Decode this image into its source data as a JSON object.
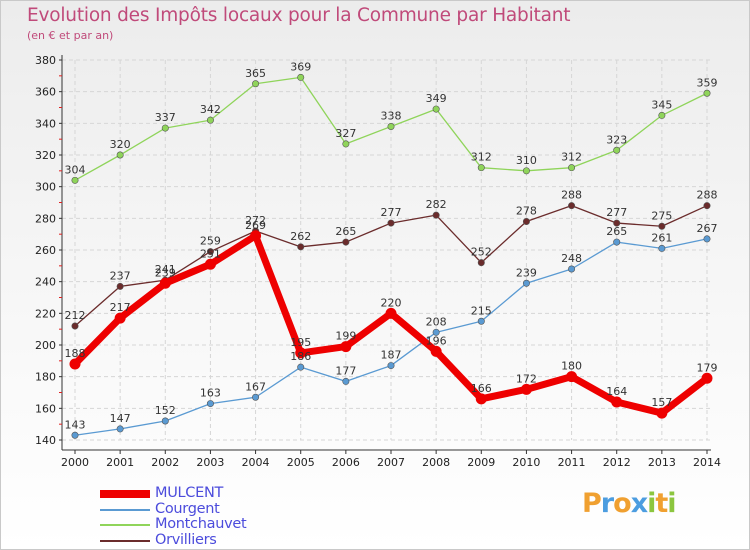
{
  "title": "Evolution des Impôts locaux pour la Commune par Habitant",
  "subtitle": "(en € et par an)",
  "logo": {
    "text": "Proxiti",
    "letters": [
      {
        "ch": "P",
        "color": "#f0a030"
      },
      {
        "ch": "r",
        "color": "#4c9de0"
      },
      {
        "ch": "o",
        "color": "#f0a030"
      },
      {
        "ch": "x",
        "color": "#4c9de0"
      },
      {
        "ch": "i",
        "color": "#8cc63f"
      },
      {
        "ch": "t",
        "color": "#f0a030"
      },
      {
        "ch": "i",
        "color": "#8cc63f"
      }
    ]
  },
  "chart_data": {
    "type": "line",
    "x": [
      "2000",
      "2001",
      "2002",
      "2003",
      "2004",
      "2005",
      "2006",
      "2007",
      "2008",
      "2009",
      "2010",
      "2011",
      "2012",
      "2013",
      "2014"
    ],
    "ylim": [
      140,
      380
    ],
    "yticks": [
      140,
      160,
      180,
      200,
      220,
      240,
      260,
      280,
      300,
      320,
      340,
      360,
      380
    ],
    "grid": true,
    "legend_position": "bottom-left",
    "series": [
      {
        "name": "MULCENT",
        "color": "#ee0000",
        "values": [
          188,
          217,
          239,
          251,
          269,
          195,
          199,
          220,
          196,
          166,
          172,
          180,
          164,
          157,
          179
        ]
      },
      {
        "name": "Courgent",
        "color": "#5a9ad2",
        "values": [
          143,
          147,
          152,
          163,
          167,
          186,
          177,
          187,
          208,
          215,
          239,
          248,
          265,
          261,
          267
        ]
      },
      {
        "name": "Montchauvet",
        "color": "#8fd45a",
        "values": [
          304,
          320,
          337,
          342,
          365,
          369,
          327,
          338,
          349,
          312,
          310,
          312,
          323,
          345,
          359
        ]
      },
      {
        "name": "Orvilliers",
        "color": "#6b2c2c",
        "values": [
          212,
          237,
          241,
          259,
          272,
          262,
          265,
          277,
          282,
          252,
          278,
          288,
          277,
          275,
          288
        ]
      }
    ]
  }
}
